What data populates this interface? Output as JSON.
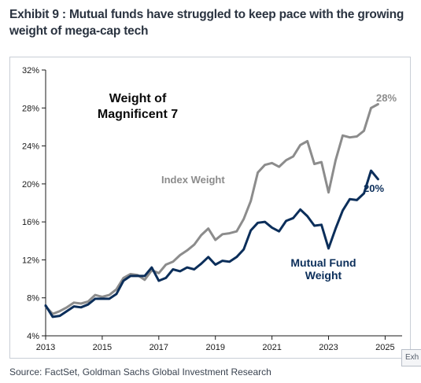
{
  "header": {
    "title": "Exhibit 9 : Mutual funds have struggled to keep pace with the growing weight of mega-cap tech"
  },
  "footer": {
    "source": "Source: FactSet, Goldman Sachs Global Investment Research",
    "corner_tab": "Exh"
  },
  "colors": {
    "index_weight": "#8c8c8c",
    "mutual_fund_weight": "#0b2e5a",
    "axis": "#1a1a1a",
    "text": "#1c2a3a"
  },
  "chart_data": {
    "type": "line",
    "title": "Weight of Magnificent 7",
    "title_lines": [
      "Weight of",
      "Magnificent 7"
    ],
    "xlabel": "",
    "ylabel": "",
    "xlim": [
      2013,
      2025.6
    ],
    "ylim": [
      4,
      32
    ],
    "x_ticks": [
      2013,
      2015,
      2017,
      2019,
      2021,
      2023,
      2025
    ],
    "x_tick_labels": [
      "2013",
      "2015",
      "2017",
      "2019",
      "2021",
      "2023",
      "2025"
    ],
    "y_ticks": [
      4,
      8,
      12,
      16,
      20,
      24,
      28,
      32
    ],
    "y_tick_labels": [
      "4%",
      "8%",
      "12%",
      "16%",
      "20%",
      "24%",
      "28%",
      "32%"
    ],
    "grid": false,
    "series": [
      {
        "name": "Index Weight",
        "color": "#8c8c8c",
        "end_label": "28%",
        "x": [
          2013.0,
          2013.25,
          2013.5,
          2013.75,
          2014.0,
          2014.25,
          2014.5,
          2014.75,
          2015.0,
          2015.25,
          2015.5,
          2015.75,
          2016.0,
          2016.25,
          2016.5,
          2016.75,
          2017.0,
          2017.25,
          2017.5,
          2017.75,
          2018.0,
          2018.25,
          2018.5,
          2018.75,
          2019.0,
          2019.25,
          2019.5,
          2019.75,
          2020.0,
          2020.25,
          2020.5,
          2020.75,
          2021.0,
          2021.25,
          2021.5,
          2021.75,
          2022.0,
          2022.25,
          2022.5,
          2022.75,
          2023.0,
          2023.25,
          2023.5,
          2023.75,
          2024.0,
          2024.25,
          2024.5,
          2024.75
        ],
        "values": [
          7.1,
          6.3,
          6.6,
          7.0,
          7.5,
          7.4,
          7.6,
          8.3,
          8.1,
          8.3,
          8.9,
          10.1,
          10.5,
          10.4,
          9.9,
          10.9,
          10.6,
          11.5,
          11.8,
          12.5,
          13.0,
          13.6,
          14.6,
          15.3,
          14.1,
          14.7,
          14.8,
          15.0,
          16.3,
          18.2,
          21.2,
          22.0,
          22.2,
          21.8,
          22.5,
          22.9,
          24.1,
          24.5,
          22.1,
          22.3,
          19.1,
          22.5,
          25.1,
          24.9,
          25.0,
          25.6,
          28.0,
          28.4
        ]
      },
      {
        "name": "Mutual Fund Weight",
        "color": "#0b2e5a",
        "end_label": "20%",
        "x": [
          2013.0,
          2013.25,
          2013.5,
          2013.75,
          2014.0,
          2014.25,
          2014.5,
          2014.75,
          2015.0,
          2015.25,
          2015.5,
          2015.75,
          2016.0,
          2016.25,
          2016.5,
          2016.75,
          2017.0,
          2017.25,
          2017.5,
          2017.75,
          2018.0,
          2018.25,
          2018.5,
          2018.75,
          2019.0,
          2019.25,
          2019.5,
          2019.75,
          2020.0,
          2020.25,
          2020.5,
          2020.75,
          2021.0,
          2021.25,
          2021.5,
          2021.75,
          2022.0,
          2022.25,
          2022.5,
          2022.75,
          2023.0,
          2023.25,
          2023.5,
          2023.75,
          2024.0,
          2024.25,
          2024.5,
          2024.75
        ],
        "values": [
          7.2,
          6.0,
          6.1,
          6.6,
          7.1,
          7.0,
          7.3,
          7.9,
          7.9,
          7.9,
          8.4,
          9.8,
          10.3,
          10.3,
          10.3,
          11.2,
          9.8,
          10.1,
          11.0,
          10.8,
          11.2,
          11.0,
          11.6,
          12.3,
          11.5,
          11.9,
          11.8,
          12.3,
          13.1,
          15.1,
          15.9,
          16.0,
          15.4,
          15.0,
          16.1,
          16.4,
          17.3,
          16.6,
          15.6,
          15.7,
          13.2,
          15.3,
          17.2,
          18.4,
          18.3,
          19.0,
          21.4,
          20.5
        ]
      }
    ],
    "annotations": [
      {
        "text": "Index Weight",
        "series": 0
      },
      {
        "text": "Mutual Fund",
        "series": 1
      },
      {
        "text": "Weight",
        "series": 1
      }
    ]
  }
}
